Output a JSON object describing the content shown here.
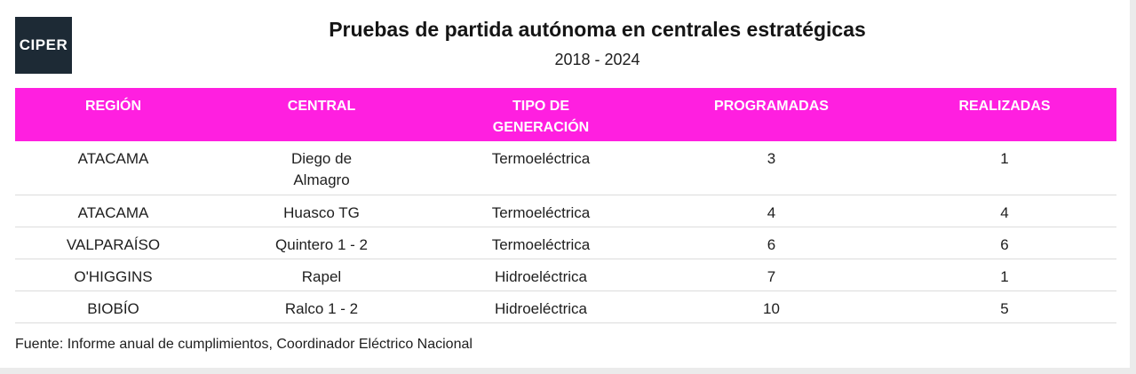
{
  "logo": {
    "text": "CIPER"
  },
  "title": "Pruebas de partida autónoma en centrales estratégicas",
  "subtitle": "2018 - 2024",
  "table": {
    "headers": [
      "REGIÓN",
      "CENTRAL",
      "TIPO DE GENERACIÓN",
      "PROGRAMADAS",
      "REALIZADAS"
    ],
    "rows": [
      [
        "ATACAMA",
        "Diego de Almagro",
        "Termoeléctrica",
        "3",
        "1"
      ],
      [
        "ATACAMA",
        "Huasco TG",
        "Termoeléctrica",
        "4",
        "4"
      ],
      [
        "VALPARAÍSO",
        "Quintero 1 - 2",
        "Termoeléctrica",
        "6",
        "6"
      ],
      [
        "O'HIGGINS",
        "Rapel",
        "Hidroeléctrica",
        "7",
        "1"
      ],
      [
        "BIOBÍO",
        "Ralco 1 - 2",
        "Hidroeléctrica",
        "10",
        "5"
      ]
    ]
  },
  "source": "Fuente: Informe anual de cumplimientos, Coordinador Eléctrico Nacional",
  "colors": {
    "header_bg": "#ff1fe0",
    "logo_bg": "#1d2a35"
  }
}
